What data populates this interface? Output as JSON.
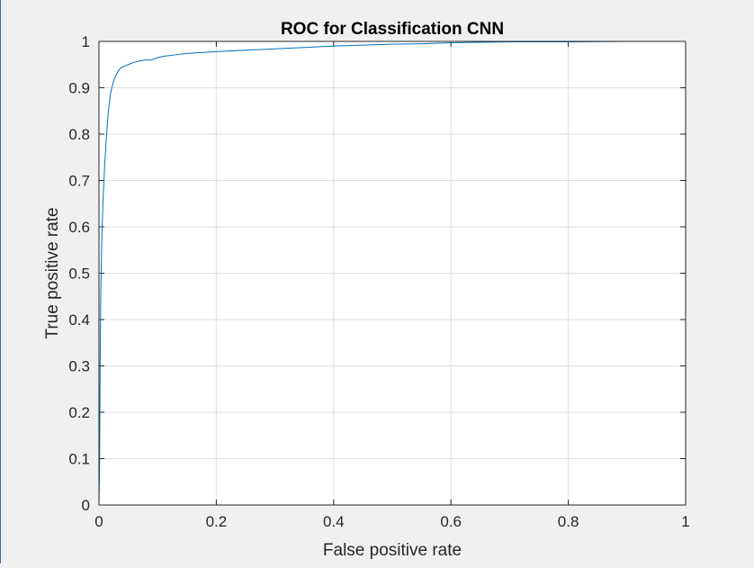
{
  "chart_data": {
    "type": "line",
    "title": "ROC for Classification CNN",
    "xlabel": "False positive rate",
    "ylabel": "True positive rate",
    "xlim": [
      0,
      1
    ],
    "ylim": [
      0,
      1
    ],
    "grid": true,
    "xticks": [
      0,
      0.2,
      0.4,
      0.6,
      0.8,
      1
    ],
    "xtick_labels": [
      "0",
      "0.2",
      "0.4",
      "0.6",
      "0.8",
      "1"
    ],
    "yticks": [
      0,
      0.1,
      0.2,
      0.3,
      0.4,
      0.5,
      0.6,
      0.7,
      0.8,
      0.9,
      1
    ],
    "ytick_labels": [
      "0",
      "0.1",
      "0.2",
      "0.3",
      "0.4",
      "0.5",
      "0.6",
      "0.7",
      "0.8",
      "0.9",
      "1"
    ],
    "series": [
      {
        "color": "#0072bd",
        "x": [
          0,
          0.001,
          0.002,
          0.003,
          0.004,
          0.005,
          0.007,
          0.01,
          0.013,
          0.016,
          0.02,
          0.025,
          0.03,
          0.035,
          0.04,
          0.05,
          0.06,
          0.07,
          0.08,
          0.09,
          0.1,
          0.11,
          0.13,
          0.15,
          0.2,
          0.25,
          0.3,
          0.35,
          0.4,
          0.45,
          0.5,
          0.55,
          0.6,
          0.65,
          0.7,
          0.8,
          0.9,
          1.0
        ],
        "y": [
          0,
          0.08,
          0.3,
          0.45,
          0.52,
          0.58,
          0.66,
          0.74,
          0.8,
          0.85,
          0.89,
          0.915,
          0.93,
          0.94,
          0.945,
          0.95,
          0.955,
          0.958,
          0.96,
          0.96,
          0.965,
          0.968,
          0.971,
          0.974,
          0.978,
          0.981,
          0.984,
          0.987,
          0.99,
          0.992,
          0.994,
          0.995,
          0.997,
          0.998,
          0.999,
          0.999,
          1.0,
          1.0
        ]
      }
    ]
  }
}
